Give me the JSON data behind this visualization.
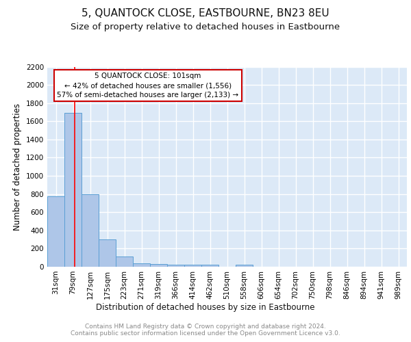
{
  "title": "5, QUANTOCK CLOSE, EASTBOURNE, BN23 8EU",
  "subtitle": "Size of property relative to detached houses in Eastbourne",
  "xlabel": "Distribution of detached houses by size in Eastbourne",
  "ylabel": "Number of detached properties",
  "categories": [
    "31sqm",
    "79sqm",
    "127sqm",
    "175sqm",
    "223sqm",
    "271sqm",
    "319sqm",
    "366sqm",
    "414sqm",
    "462sqm",
    "510sqm",
    "558sqm",
    "606sqm",
    "654sqm",
    "702sqm",
    "750sqm",
    "798sqm",
    "846sqm",
    "894sqm",
    "941sqm",
    "989sqm"
  ],
  "values": [
    775,
    1690,
    800,
    300,
    110,
    40,
    30,
    25,
    20,
    20,
    0,
    20,
    0,
    0,
    0,
    0,
    0,
    0,
    0,
    0,
    0
  ],
  "bar_color": "#aec6e8",
  "bar_edge_color": "#5a9fd4",
  "red_line_x": 1.08,
  "annotation_text": "5 QUANTOCK CLOSE: 101sqm\n← 42% of detached houses are smaller (1,556)\n57% of semi-detached houses are larger (2,133) →",
  "annotation_box_color": "#ffffff",
  "annotation_box_edge_color": "#cc0000",
  "ylim": [
    0,
    2200
  ],
  "yticks": [
    0,
    200,
    400,
    600,
    800,
    1000,
    1200,
    1400,
    1600,
    1800,
    2000,
    2200
  ],
  "background_color": "#dce9f7",
  "grid_color": "#ffffff",
  "footer_text": "Contains HM Land Registry data © Crown copyright and database right 2024.\nContains public sector information licensed under the Open Government Licence v3.0.",
  "title_fontsize": 11,
  "subtitle_fontsize": 9.5,
  "label_fontsize": 8.5,
  "tick_fontsize": 7.5,
  "footer_fontsize": 6.5
}
